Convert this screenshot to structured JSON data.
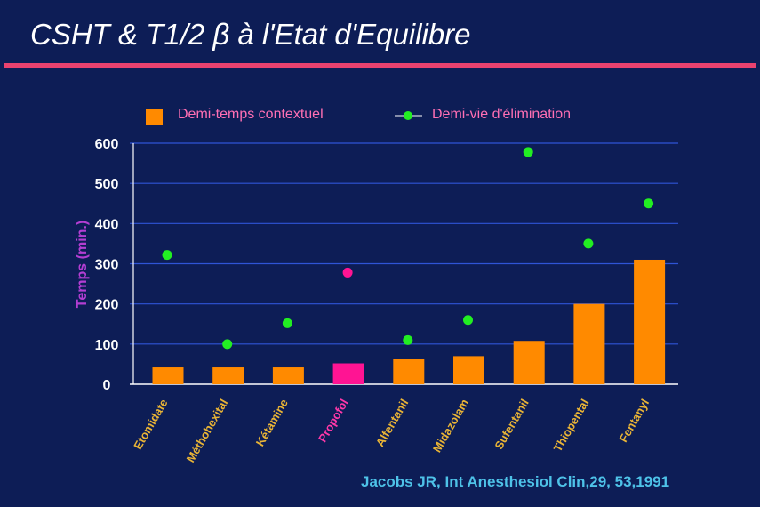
{
  "slide": {
    "title": "CSHT & T1/2 β à l'Etat d'Equilibre",
    "source": "Jacobs JR, Int Anesthesiol Clin,29, 53,1991",
    "accent_color": "#e9426f"
  },
  "chart_data": {
    "type": "bar",
    "title": "",
    "xlabel": "",
    "ylabel": "Temps (min.)",
    "ylim": [
      0,
      600
    ],
    "yticks": [
      0,
      100,
      200,
      300,
      400,
      500,
      600
    ],
    "grid": true,
    "legend_position": "top",
    "categories": [
      "Etomidate",
      "Méthohexital",
      "Kétamine",
      "Propofol",
      "Alfentanil",
      "Midazolam",
      "Sufentanil",
      "Thiopental",
      "Fentanyl"
    ],
    "category_colors": [
      "#e9b436",
      "#e9b436",
      "#e9b436",
      "#ff38a8",
      "#e9b436",
      "#e9b436",
      "#e9b436",
      "#e9b436",
      "#e9b436"
    ],
    "series": [
      {
        "name": "Demi-temps contextuel",
        "kind": "bar",
        "color": "#ff8a00",
        "highlight_color": "#ff1493",
        "highlight_index": 3,
        "values": [
          42,
          42,
          42,
          52,
          62,
          70,
          108,
          200,
          310
        ]
      },
      {
        "name": "Demi-vie d'élimination",
        "kind": "scatter",
        "color": "#22ee22",
        "highlight_color": "#ff1493",
        "highlight_index": 3,
        "values": [
          322,
          100,
          152,
          278,
          110,
          160,
          578,
          350,
          450
        ]
      }
    ]
  }
}
